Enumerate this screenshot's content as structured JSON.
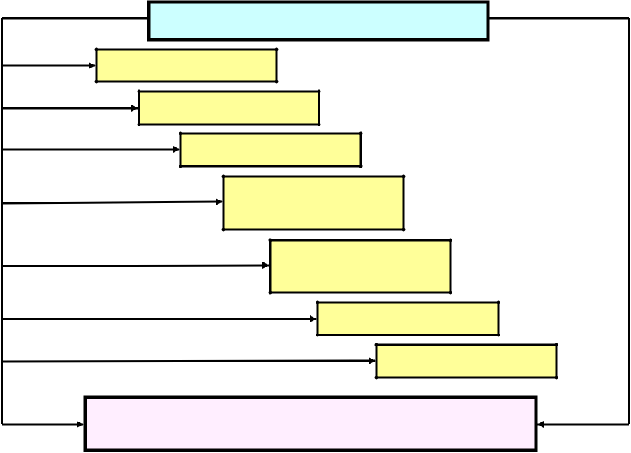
{
  "diagram": {
    "colors": {
      "top_box_fill": "#ccffff",
      "step_fill": "#ffff99",
      "bottom_box_fill": "#ffeeff",
      "stroke": "#000000",
      "background": "#ffffff"
    },
    "top_box": {
      "label": ""
    },
    "steps": [
      {
        "label": ""
      },
      {
        "label": ""
      },
      {
        "label": ""
      },
      {
        "label": ""
      },
      {
        "label": ""
      },
      {
        "label": ""
      },
      {
        "label": ""
      }
    ],
    "bottom_box": {
      "label": ""
    }
  }
}
